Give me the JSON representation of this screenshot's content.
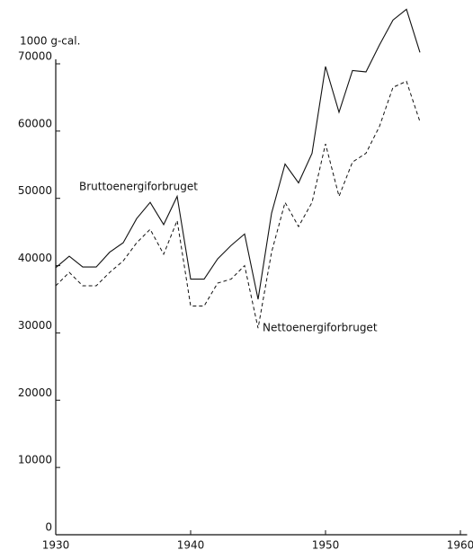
{
  "chart_data": {
    "type": "line",
    "y_unit_label": "1000 g-cal.",
    "x": [
      1930,
      1931,
      1932,
      1933,
      1934,
      1935,
      1936,
      1937,
      1938,
      1939,
      1940,
      1941,
      1942,
      1943,
      1944,
      1945,
      1946,
      1947,
      1948,
      1949,
      1950,
      1951,
      1952,
      1953,
      1954,
      1955,
      1956,
      1957
    ],
    "series": [
      {
        "name": "Bruttoenergiforbruget",
        "color": "#111111",
        "dash": "solid",
        "values": [
          39700,
          41400,
          39800,
          39800,
          42000,
          43400,
          47000,
          49400,
          46100,
          50300,
          38000,
          38000,
          41000,
          43000,
          44700,
          35000,
          47800,
          55100,
          52300,
          56700,
          69600,
          62800,
          69000,
          68800,
          72800,
          76500,
          78100,
          71700
        ]
      },
      {
        "name": "Nettoenergiforbruget",
        "color": "#111111",
        "dash": "dashed",
        "values": [
          37000,
          39000,
          37000,
          37000,
          39000,
          40700,
          43400,
          45400,
          41700,
          46700,
          34000,
          34000,
          37400,
          38000,
          40000,
          30700,
          42000,
          49400,
          45800,
          49400,
          58100,
          50300,
          55400,
          56700,
          60700,
          66500,
          67400,
          61400
        ]
      }
    ],
    "xlim": [
      1930,
      1960.5
    ],
    "xticks": [
      1930,
      1940,
      1950,
      1960
    ],
    "ylim": [
      0,
      70000
    ],
    "yticks": [
      0,
      10000,
      20000,
      30000,
      40000,
      50000,
      60000,
      70000
    ],
    "grid": false
  }
}
